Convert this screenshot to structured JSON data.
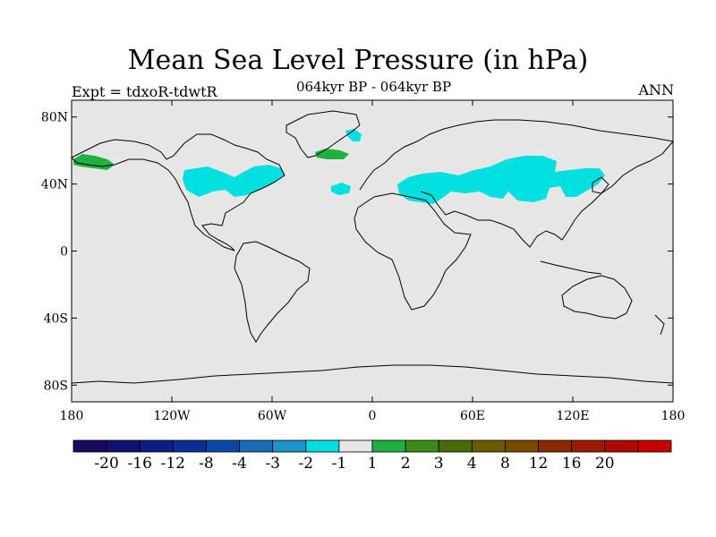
{
  "title": "Mean Sea Level Pressure (in hPa)",
  "left_label": "Expt = tdxoR-tdwtR",
  "center_label": "064kyr BP - 064kyr BP",
  "right_label": "ANN",
  "map": {
    "projection": "cylindrical-equidistant",
    "lon_range": [
      -180,
      180
    ],
    "lat_range": [
      -90,
      90
    ],
    "background_color": "#e6e6e6",
    "lat_ticks": [
      {
        "value": 80,
        "label": "80N"
      },
      {
        "value": 40,
        "label": "40N"
      },
      {
        "value": 0,
        "label": "0"
      },
      {
        "value": -40,
        "label": "40S"
      },
      {
        "value": -80,
        "label": "80S"
      }
    ],
    "lon_ticks": [
      {
        "value": -180,
        "label": "180"
      },
      {
        "value": -120,
        "label": "120W"
      },
      {
        "value": -60,
        "label": "60W"
      },
      {
        "value": 0,
        "label": "0"
      },
      {
        "value": 60,
        "label": "60E"
      },
      {
        "value": 120,
        "label": "120E"
      },
      {
        "value": 180,
        "label": "180"
      }
    ]
  },
  "colorbar": {
    "colors": [
      "#1a0a5e",
      "#10106e",
      "#0a1e86",
      "#0a2e96",
      "#0a48a6",
      "#1a6ab6",
      "#1a96c8",
      "#00e0e0",
      "#e6e6e6",
      "#20b040",
      "#3a8a1a",
      "#4a6a0a",
      "#6a5a00",
      "#7a4a00",
      "#8a2a00",
      "#a01a00",
      "#b00a00",
      "#c80000"
    ],
    "labels": [
      "-20",
      "-16",
      "-12",
      "-8",
      "-4",
      "-3",
      "-2",
      "-1",
      "1",
      "2",
      "3",
      "4",
      "8",
      "12",
      "16",
      "20"
    ]
  }
}
